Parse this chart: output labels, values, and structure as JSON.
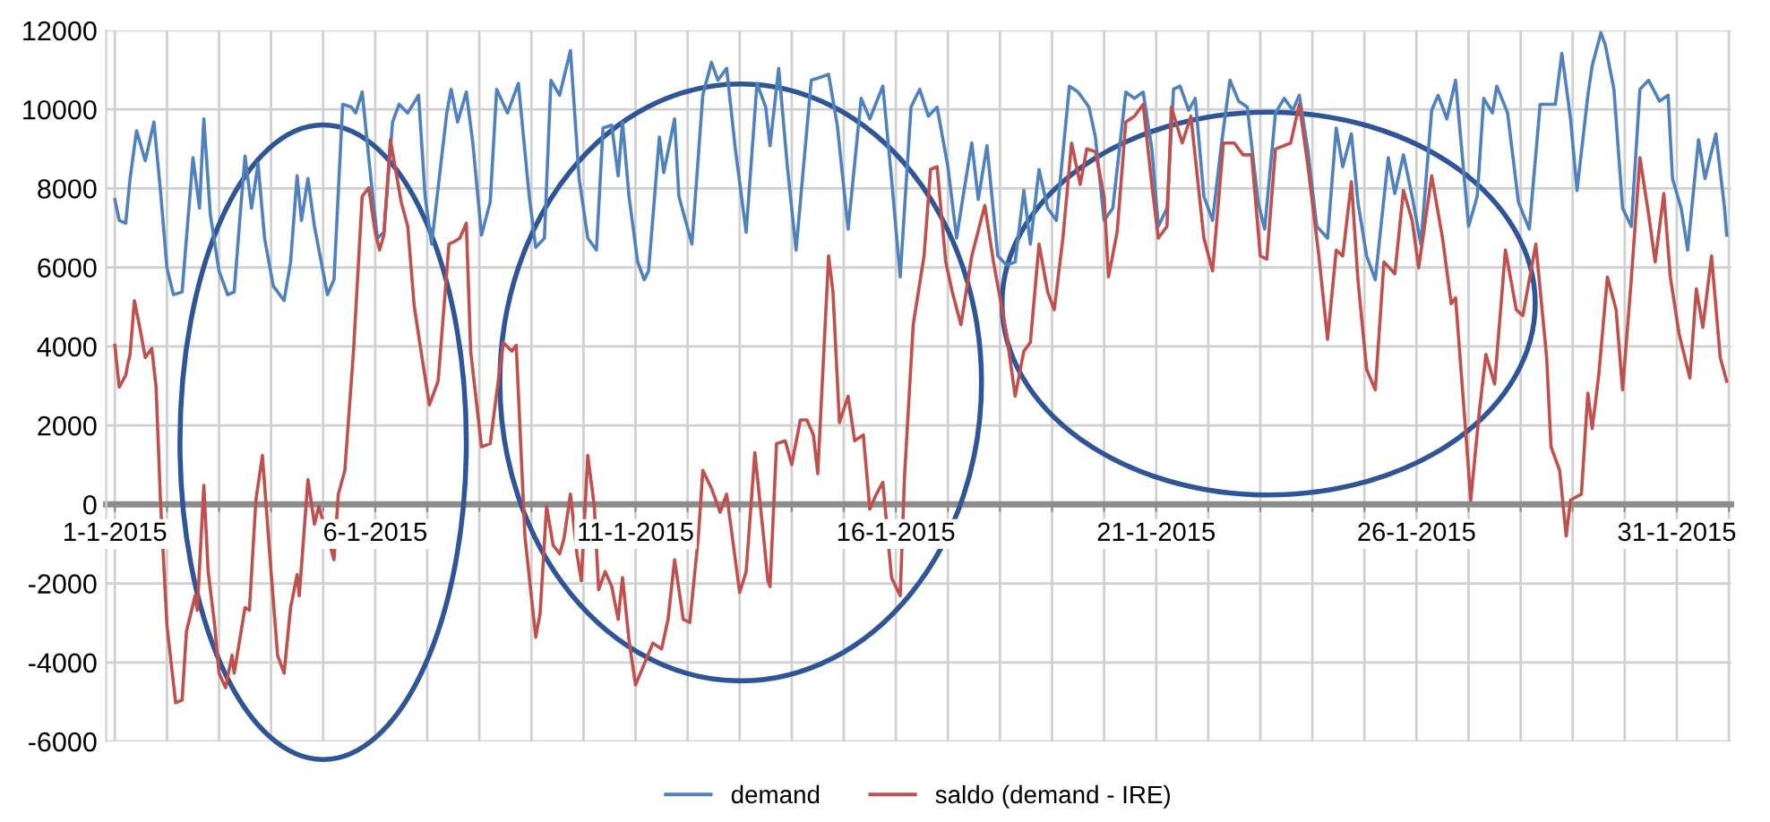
{
  "chart_data": {
    "type": "line",
    "xlim": [
      "2014-12-31T20:00",
      "2015-02-01T01:00"
    ],
    "xticks": [
      {
        "value": "2015-01-01",
        "label": "1-1-2015"
      },
      {
        "value": "2015-01-02",
        "label": null
      },
      {
        "value": "2015-01-03",
        "label": null
      },
      {
        "value": "2015-01-04",
        "label": null
      },
      {
        "value": "2015-01-05",
        "label": null
      },
      {
        "value": "2015-01-06",
        "label": "6-1-2015"
      },
      {
        "value": "2015-01-07",
        "label": null
      },
      {
        "value": "2015-01-08",
        "label": null
      },
      {
        "value": "2015-01-09",
        "label": null
      },
      {
        "value": "2015-01-10",
        "label": null
      },
      {
        "value": "2015-01-11",
        "label": "11-1-2015"
      },
      {
        "value": "2015-01-12",
        "label": null
      },
      {
        "value": "2015-01-13",
        "label": null
      },
      {
        "value": "2015-01-14",
        "label": null
      },
      {
        "value": "2015-01-15",
        "label": null
      },
      {
        "value": "2015-01-16",
        "label": "16-1-2015"
      },
      {
        "value": "2015-01-17",
        "label": null
      },
      {
        "value": "2015-01-18",
        "label": null
      },
      {
        "value": "2015-01-19",
        "label": null
      },
      {
        "value": "2015-01-20",
        "label": null
      },
      {
        "value": "2015-01-21",
        "label": "21-1-2015"
      },
      {
        "value": "2015-01-22",
        "label": null
      },
      {
        "value": "2015-01-23",
        "label": null
      },
      {
        "value": "2015-01-24",
        "label": null
      },
      {
        "value": "2015-01-25",
        "label": null
      },
      {
        "value": "2015-01-26",
        "label": "26-1-2015"
      },
      {
        "value": "2015-01-27",
        "label": null
      },
      {
        "value": "2015-01-28",
        "label": null
      },
      {
        "value": "2015-01-29",
        "label": null
      },
      {
        "value": "2015-01-30",
        "label": null
      },
      {
        "value": "2015-01-31",
        "label": "31-1-2015"
      },
      {
        "value": "2015-02-01",
        "label": null
      }
    ],
    "ylim": [
      -6000,
      12000
    ],
    "yticks": [
      -6000,
      -4000,
      -2000,
      0,
      2000,
      4000,
      6000,
      8000,
      10000,
      12000
    ],
    "grid": true,
    "legend": "bottom",
    "line_style": "solid",
    "marker": "none",
    "series": [
      {
        "name": "demand",
        "color": "#4f81bd",
        "x": [
          "2015-01-01T00:00",
          "2015-01-01T02:00",
          "2015-01-01T05:00",
          "2015-01-01T07:00",
          "2015-01-01T10:00",
          "2015-01-01T14:00",
          "2015-01-01T18:00",
          "2015-01-01T21:00",
          "2015-01-02T00:00",
          "2015-01-02T03:00",
          "2015-01-02T07:00",
          "2015-01-02T09:00",
          "2015-01-02T12:00",
          "2015-01-02T15:00",
          "2015-01-02T17:00",
          "2015-01-02T20:00",
          "2015-01-03T00:00",
          "2015-01-03T04:00",
          "2015-01-03T07:00",
          "2015-01-03T10:00",
          "2015-01-03T12:00",
          "2015-01-03T15:00",
          "2015-01-03T18:00",
          "2015-01-03T21:00",
          "2015-01-04T01:00",
          "2015-01-04T06:00",
          "2015-01-04T09:00",
          "2015-01-04T12:00",
          "2015-01-04T14:00",
          "2015-01-04T17:00",
          "2015-01-04T20:00",
          "2015-01-05T02:00",
          "2015-01-05T05:00",
          "2015-01-05T09:00",
          "2015-01-05T13:00",
          "2015-01-05T15:00",
          "2015-01-05T18:00",
          "2015-01-05T22:00",
          "2015-01-06T01:00",
          "2015-01-06T04:00",
          "2015-01-06T08:00",
          "2015-01-06T11:00",
          "2015-01-06T15:00",
          "2015-01-06T20:00",
          "2015-01-06T23:00",
          "2015-01-07T02:00",
          "2015-01-07T09:00",
          "2015-01-07T11:00",
          "2015-01-07T14:00",
          "2015-01-07T18:00",
          "2015-01-07T21:00",
          "2015-01-08T01:00",
          "2015-01-08T05:00",
          "2015-01-08T08:00",
          "2015-01-08T13:00",
          "2015-01-08T18:00",
          "2015-01-08T23:00",
          "2015-01-09T02:00",
          "2015-01-09T06:00",
          "2015-01-09T09:00",
          "2015-01-09T13:00",
          "2015-01-09T18:00",
          "2015-01-09T22:00",
          "2015-01-10T02:00",
          "2015-01-10T06:00",
          "2015-01-10T09:00",
          "2015-01-10T13:00",
          "2015-01-10T16:00",
          "2015-01-10T18:00",
          "2015-01-10T21:00",
          "2015-01-11T01:00",
          "2015-01-11T04:00",
          "2015-01-11T06:00",
          "2015-01-11T11:00",
          "2015-01-11T13:00",
          "2015-01-11T18:00",
          "2015-01-11T20:00",
          "2015-01-12T02:00",
          "2015-01-12T07:00",
          "2015-01-12T11:00",
          "2015-01-12T14:00",
          "2015-01-12T18:00",
          "2015-01-12T22:00",
          "2015-01-13T03:00",
          "2015-01-13T08:00",
          "2015-01-13T12:00",
          "2015-01-13T14:00",
          "2015-01-13T18:00",
          "2015-01-13T22:00",
          "2015-01-14T02:00",
          "2015-01-14T09:00",
          "2015-01-14T13:00",
          "2015-01-14T17:00",
          "2015-01-14T21:00",
          "2015-01-15T02:00",
          "2015-01-15T08:00",
          "2015-01-15T12:00",
          "2015-01-15T18:00",
          "2015-01-15T22:00",
          "2015-01-16T02:00",
          "2015-01-16T07:00",
          "2015-01-16T11:00",
          "2015-01-16T15:00",
          "2015-01-16T19:00",
          "2015-01-17T00:00",
          "2015-01-17T04:00",
          "2015-01-17T07:00",
          "2015-01-17T11:00",
          "2015-01-17T14:00",
          "2015-01-17T18:00",
          "2015-01-17T23:00",
          "2015-01-18T03:00",
          "2015-01-18T07:00",
          "2015-01-18T11:00",
          "2015-01-18T14:00",
          "2015-01-18T18:00",
          "2015-01-18T22:00",
          "2015-01-19T02:00",
          "2015-01-19T08:00",
          "2015-01-19T12:00",
          "2015-01-19T17:00",
          "2015-01-19T20:00",
          "2015-01-20T00:00",
          "2015-01-20T04:00",
          "2015-01-20T10:00",
          "2015-01-20T14:00",
          "2015-01-20T18:00",
          "2015-01-20T22:00",
          "2015-01-21T01:00",
          "2015-01-21T05:00",
          "2015-01-21T08:00",
          "2015-01-21T11:00",
          "2015-01-21T15:00",
          "2015-01-21T18:00",
          "2015-01-21T22:00",
          "2015-01-22T02:00",
          "2015-01-22T06:00",
          "2015-01-22T10:00",
          "2015-01-22T14:00",
          "2015-01-22T18:00",
          "2015-01-22T23:00",
          "2015-01-23T02:00",
          "2015-01-23T07:00",
          "2015-01-23T11:00",
          "2015-01-23T15:00",
          "2015-01-23T18:00",
          "2015-01-23T22:00",
          "2015-01-24T02:00",
          "2015-01-24T07:00",
          "2015-01-24T11:00",
          "2015-01-24T14:00",
          "2015-01-24T18:00",
          "2015-01-24T21:00",
          "2015-01-25T01:00",
          "2015-01-25T05:00",
          "2015-01-25T11:00",
          "2015-01-25T14:00",
          "2015-01-25T18:00",
          "2015-01-25T22:00",
          "2015-01-26T02:00",
          "2015-01-26T07:00",
          "2015-01-26T10:00",
          "2015-01-26T14:00",
          "2015-01-26T18:00",
          "2015-01-27T00:00",
          "2015-01-27T04:00",
          "2015-01-27T07:00",
          "2015-01-27T11:00",
          "2015-01-27T13:00",
          "2015-01-27T18:00",
          "2015-01-27T23:00",
          "2015-01-28T04:00",
          "2015-01-28T09:00",
          "2015-01-28T16:00",
          "2015-01-28T19:00",
          "2015-01-28T23:00",
          "2015-01-29T02:00",
          "2015-01-29T07:00",
          "2015-01-29T09:00",
          "2015-01-29T13:00",
          "2015-01-29T15:00",
          "2015-01-29T19:00",
          "2015-01-29T23:00",
          "2015-01-30T03:00",
          "2015-01-30T07:00",
          "2015-01-30T11:00",
          "2015-01-30T16:00",
          "2015-01-30T20:00",
          "2015-01-30T22:00",
          "2015-01-31T02:00",
          "2015-01-31T05:00",
          "2015-01-31T10:00",
          "2015-01-31T13:00",
          "2015-01-31T18:00",
          "2015-01-31T22:00",
          "2015-01-31T23:00"
        ],
        "values": [
          7720,
          7190,
          7120,
          8250,
          9460,
          8700,
          9680,
          7950,
          5990,
          5310,
          5380,
          6740,
          8780,
          7500,
          9760,
          7340,
          5910,
          5310,
          5380,
          7500,
          8820,
          7500,
          8630,
          6740,
          5530,
          5160,
          6140,
          8320,
          7190,
          8250,
          7040,
          5310,
          5690,
          10130,
          10060,
          9910,
          10440,
          8250,
          6740,
          6890,
          9680,
          10130,
          9910,
          10360,
          7800,
          6590,
          9910,
          10510,
          9680,
          10440,
          9150,
          6820,
          7650,
          10510,
          9910,
          10660,
          7800,
          6510,
          6740,
          10740,
          10360,
          11490,
          8250,
          6740,
          6440,
          9530,
          9600,
          8320,
          9680,
          7800,
          6140,
          5690,
          5910,
          9300,
          8400,
          9760,
          7800,
          6590,
          10360,
          11190,
          10740,
          11040,
          9000,
          6890,
          10660,
          10060,
          9080,
          11040,
          8550,
          6440,
          10740,
          10810,
          10890,
          9600,
          6970,
          10280,
          9760,
          10590,
          8250,
          5760,
          10060,
          10510,
          9830,
          10060,
          8550,
          6740,
          7800,
          9150,
          7720,
          9080,
          6290,
          6060,
          6140,
          7950,
          6590,
          8480,
          7500,
          7190,
          10590,
          10440,
          10060,
          9300,
          7190,
          7500,
          10440,
          10280,
          10440,
          9000,
          7040,
          7500,
          10510,
          10590,
          9980,
          10280,
          7800,
          7190,
          9080,
          10740,
          10210,
          10060,
          7650,
          6970,
          9910,
          10280,
          9980,
          10360,
          8930,
          7040,
          6740,
          9530,
          8550,
          9380,
          7650,
          6290,
          5690,
          8780,
          7870,
          8850,
          7800,
          6590,
          9980,
          10360,
          9760,
          10740,
          7040,
          7800,
          10280,
          9910,
          10590,
          9910,
          7650,
          6970,
          10130,
          10130,
          11420,
          9760,
          7950,
          10360,
          11110,
          11940,
          11640,
          10510,
          7500,
          7040,
          10510,
          10740,
          10210,
          10360,
          8250,
          7500,
          6440,
          9230,
          8250,
          9380,
          7500,
          6820
        ]
      },
      {
        "name": "saldo (demand - IRE)",
        "color": "#c0504d",
        "x": [
          "2015-01-01T00:00",
          "2015-01-01T02:00",
          "2015-01-01T05:00",
          "2015-01-01T06:00",
          "2015-01-01T07:00",
          "2015-01-01T09:00",
          "2015-01-01T12:00",
          "2015-01-01T14:00",
          "2015-01-01T17:00",
          "2015-01-01T19:00",
          "2015-01-01T21:00",
          "2015-01-02T00:00",
          "2015-01-02T04:00",
          "2015-01-02T07:00",
          "2015-01-02T09:00",
          "2015-01-02T13:00",
          "2015-01-02T14:00",
          "2015-01-02T17:00",
          "2015-01-02T19:00",
          "2015-01-02T22:00",
          "2015-01-03T00:00",
          "2015-01-03T03:00",
          "2015-01-03T06:00",
          "2015-01-03T07:00",
          "2015-01-03T12:00",
          "2015-01-03T14:00",
          "2015-01-03T17:00",
          "2015-01-03T20:00",
          "2015-01-04T00:00",
          "2015-01-04T03:00",
          "2015-01-04T06:00",
          "2015-01-04T09:00",
          "2015-01-04T12:00",
          "2015-01-04T13:00",
          "2015-01-04T17:00",
          "2015-01-04T20:00",
          "2015-01-04T22:00",
          "2015-01-05T05:00",
          "2015-01-05T07:00",
          "2015-01-05T10:00",
          "2015-01-05T14:00",
          "2015-01-05T18:00",
          "2015-01-05T21:00",
          "2015-01-06T00:00",
          "2015-01-06T02:00",
          "2015-01-06T04:00",
          "2015-01-06T07:00",
          "2015-01-06T12:00",
          "2015-01-06T15:00",
          "2015-01-06T18:00",
          "2015-01-06T22:00",
          "2015-01-07T01:00",
          "2015-01-07T05:00",
          "2015-01-07T10:00",
          "2015-01-07T13:00",
          "2015-01-07T15:00",
          "2015-01-07T18:00",
          "2015-01-07T20:00",
          "2015-01-08T01:00",
          "2015-01-08T05:00",
          "2015-01-08T11:00",
          "2015-01-08T15:00",
          "2015-01-08T17:00",
          "2015-01-08T21:00",
          "2015-01-09T02:00",
          "2015-01-09T04:00",
          "2015-01-09T07:00",
          "2015-01-09T10:00",
          "2015-01-09T13:00",
          "2015-01-09T15:00",
          "2015-01-09T18:00",
          "2015-01-09T21:00",
          "2015-01-09T23:00",
          "2015-01-10T02:00",
          "2015-01-10T05:00",
          "2015-01-10T07:00",
          "2015-01-10T10:00",
          "2015-01-10T13:00",
          "2015-01-10T16:00",
          "2015-01-10T18:00",
          "2015-01-10T21:00",
          "2015-01-11T00:00",
          "2015-01-11T04:00",
          "2015-01-11T08:00",
          "2015-01-11T12:00",
          "2015-01-11T15:00",
          "2015-01-11T18:00",
          "2015-01-11T22:00",
          "2015-01-12T01:00",
          "2015-01-12T05:00",
          "2015-01-12T07:00",
          "2015-01-12T11:00",
          "2015-01-12T15:00",
          "2015-01-12T18:00",
          "2015-01-13T00:00",
          "2015-01-13T03:00",
          "2015-01-13T07:00",
          "2015-01-13T11:00",
          "2015-01-13T13:00",
          "2015-01-13T14:00",
          "2015-01-13T17:00",
          "2015-01-13T21:00",
          "2015-01-14T00:00",
          "2015-01-14T04:00",
          "2015-01-14T07:00",
          "2015-01-14T10:00",
          "2015-01-14T12:00",
          "2015-01-14T17:00",
          "2015-01-14T19:00",
          "2015-01-14T22:00",
          "2015-01-15T02:00",
          "2015-01-15T05:00",
          "2015-01-15T09:00",
          "2015-01-15T12:00",
          "2015-01-15T15:00",
          "2015-01-15T18:00",
          "2015-01-15T22:00",
          "2015-01-16T02:00",
          "2015-01-16T04:00",
          "2015-01-16T08:00",
          "2015-01-16T13:00",
          "2015-01-16T16:00",
          "2015-01-16T19:00",
          "2015-01-16T23:00",
          "2015-01-17T02:00",
          "2015-01-17T06:00",
          "2015-01-17T11:00",
          "2015-01-17T17:00",
          "2015-01-17T21:00",
          "2015-01-18T03:00",
          "2015-01-18T07:00",
          "2015-01-18T11:00",
          "2015-01-18T14:00",
          "2015-01-18T18:00",
          "2015-01-18T22:00",
          "2015-01-19T01:00",
          "2015-01-19T05:00",
          "2015-01-19T09:00",
          "2015-01-19T13:00",
          "2015-01-19T16:00",
          "2015-01-19T20:00",
          "2015-01-20T00:00",
          "2015-01-20T02:00",
          "2015-01-20T06:00",
          "2015-01-20T10:00",
          "2015-01-20T14:00",
          "2015-01-20T18:00",
          "2015-01-20T22:00",
          "2015-01-21T01:00",
          "2015-01-21T05:00",
          "2015-01-21T07:00",
          "2015-01-21T12:00",
          "2015-01-21T16:00",
          "2015-01-21T22:00",
          "2015-01-22T02:00",
          "2015-01-22T07:00",
          "2015-01-22T12:00",
          "2015-01-22T16:00",
          "2015-01-22T20:00",
          "2015-01-23T00:00",
          "2015-01-23T03:00",
          "2015-01-23T07:00",
          "2015-01-23T14:00",
          "2015-01-23T18:00",
          "2015-01-23T22:00",
          "2015-01-24T03:00",
          "2015-01-24T07:00",
          "2015-01-24T11:00",
          "2015-01-24T14:00",
          "2015-01-24T18:00",
          "2015-01-24T21:00",
          "2015-01-25T01:00",
          "2015-01-25T05:00",
          "2015-01-25T09:00",
          "2015-01-25T14:00",
          "2015-01-25T18:00",
          "2015-01-25T22:00",
          "2015-01-26T01:00",
          "2015-01-26T07:00",
          "2015-01-26T12:00",
          "2015-01-26T16:00",
          "2015-01-26T18:00",
          "2015-01-26T23:00",
          "2015-01-27T01:00",
          "2015-01-27T05:00",
          "2015-01-27T08:00",
          "2015-01-27T12:00",
          "2015-01-27T17:00",
          "2015-01-27T22:00",
          "2015-01-28T01:00",
          "2015-01-28T07:00",
          "2015-01-28T12:00",
          "2015-01-28T14:00",
          "2015-01-28T18:00",
          "2015-01-28T21:00",
          "2015-01-28T23:00",
          "2015-01-29T04:00",
          "2015-01-29T07:00",
          "2015-01-29T09:00",
          "2015-01-29T12:00",
          "2015-01-29T16:00",
          "2015-01-29T20:00",
          "2015-01-29T23:00",
          "2015-01-30T03:00",
          "2015-01-30T07:00",
          "2015-01-30T11:00",
          "2015-01-30T14:00",
          "2015-01-30T18:00",
          "2015-01-30T21:00",
          "2015-01-31T01:00",
          "2015-01-31T06:00",
          "2015-01-31T09:00",
          "2015-01-31T12:00",
          "2015-01-31T16:00",
          "2015-01-31T20:00",
          "2015-01-31T23:00"
        ],
        "values": [
          4030,
          2970,
          3270,
          3570,
          3800,
          5160,
          4330,
          3720,
          3950,
          2970,
          110,
          -3060,
          -5020,
          -4950,
          -3210,
          -2310,
          -2680,
          480,
          -1700,
          -3060,
          -4270,
          -4640,
          -3820,
          -4270,
          -2610,
          -2680,
          110,
          1240,
          -1700,
          -3820,
          -4270,
          -2610,
          -1780,
          -2310,
          630,
          -500,
          -50,
          -1400,
          260,
          860,
          3880,
          7800,
          8020,
          6890,
          6440,
          6820,
          9230,
          7650,
          7040,
          5010,
          3570,
          2520,
          3120,
          6590,
          6670,
          6740,
          7120,
          3880,
          1460,
          1540,
          4100,
          3880,
          4030,
          -800,
          -3360,
          -2760,
          -50,
          -1030,
          -1250,
          -870,
          260,
          -1250,
          -1930,
          1240,
          -50,
          -2160,
          -1700,
          -2070,
          -2910,
          -1850,
          -3440,
          -4570,
          -4040,
          -3510,
          -3660,
          -2910,
          -1400,
          -2910,
          -2990,
          -800,
          860,
          410,
          -200,
          260,
          -2230,
          -1700,
          1310,
          -800,
          -1930,
          -2080,
          1540,
          1610,
          1010,
          2140,
          2140,
          1760,
          780,
          6290,
          5380,
          2070,
          2740,
          1610,
          1760,
          -120,
          260,
          560,
          -1850,
          -2310,
          710,
          4550,
          6290,
          8480,
          8550,
          6140,
          5380,
          4550,
          6290,
          7570,
          6140,
          4330,
          2740,
          3880,
          4100,
          6590,
          5380,
          4930,
          6740,
          9150,
          8100,
          9000,
          8930,
          7800,
          5760,
          6890,
          9680,
          9830,
          10130,
          8100,
          6740,
          7040,
          10060,
          9150,
          9830,
          6740,
          5910,
          9150,
          9150,
          8850,
          8850,
          6290,
          6210,
          9000,
          9150,
          10130,
          8550,
          6290,
          4180,
          6440,
          6290,
          8170,
          5690,
          3420,
          2900,
          6140,
          5840,
          7950,
          7190,
          5990,
          8320,
          6740,
          5080,
          5230,
          1610,
          110,
          2370,
          3800,
          3050,
          6440,
          4930,
          4780,
          6590,
          3720,
          1460,
          860,
          -800,
          110,
          260,
          2820,
          1920,
          3270,
          5760,
          4930,
          2900,
          5690,
          8780,
          7340,
          6140,
          7870,
          5760,
          4330,
          3200,
          5460,
          4480,
          6290,
          3720,
          3120
        ]
      }
    ]
  }
}
